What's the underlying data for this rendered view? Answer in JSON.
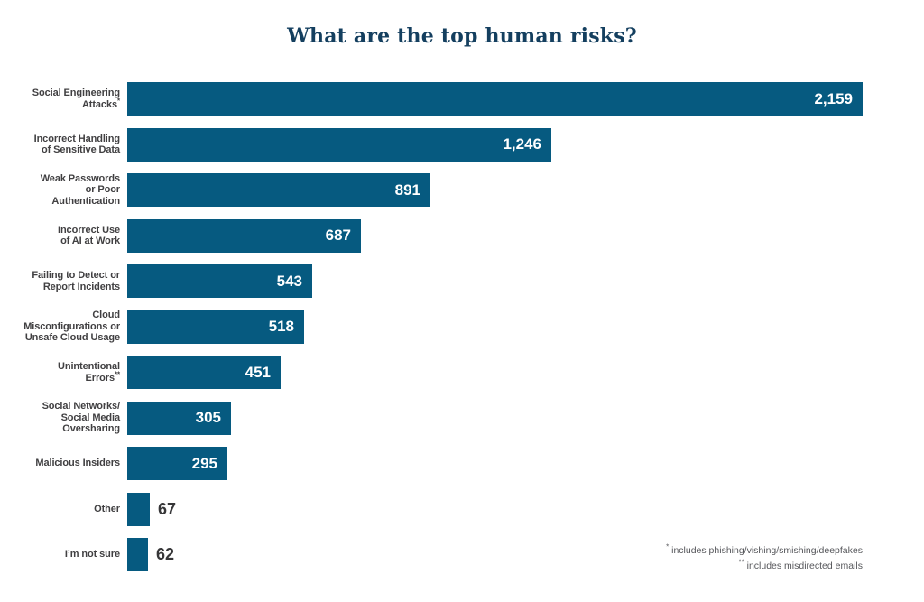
{
  "chart_data": {
    "type": "bar",
    "orientation": "horizontal",
    "title": "What are the top human risks?",
    "xlabel": "",
    "ylabel": "",
    "xlim": [
      0,
      2159
    ],
    "grid": false,
    "legend": null,
    "bar_color": "#065a80",
    "title_color": "#143f5f",
    "label_color": "#414042",
    "value_color_inside": "#ffffff",
    "value_color_outside": "#363638",
    "categories": [
      "Social Engineering Attacks*",
      "Incorrect Handling of Sensitive Data",
      "Weak Passwords or Poor Authentication",
      "Incorrect Use of AI at Work",
      "Failing to Detect or Report Incidents",
      "Cloud Misconfigurations or Unsafe Cloud Usage",
      "Unintentional Errors**",
      "Social Networks/ Social Media Oversharing",
      "Malicious Insiders",
      "Other",
      "I’m not sure"
    ],
    "values": [
      2159,
      1246,
      891,
      687,
      543,
      518,
      451,
      305,
      295,
      67,
      62
    ],
    "rows": [
      {
        "label_lines": [
          "Social Engineering",
          "Attacks"
        ],
        "marker": "*",
        "value": 2159,
        "display": "2,159",
        "value_inside": true
      },
      {
        "label_lines": [
          "Incorrect Handling",
          "of Sensitive Data"
        ],
        "marker": "",
        "value": 1246,
        "display": "1,246",
        "value_inside": true
      },
      {
        "label_lines": [
          "Weak Passwords",
          "or Poor",
          "Authentication"
        ],
        "marker": "",
        "value": 891,
        "display": "891",
        "value_inside": true
      },
      {
        "label_lines": [
          "Incorrect Use",
          "of AI at Work"
        ],
        "marker": "",
        "value": 687,
        "display": "687",
        "value_inside": true
      },
      {
        "label_lines": [
          "Failing to Detect or",
          "Report Incidents"
        ],
        "marker": "",
        "value": 543,
        "display": "543",
        "value_inside": true
      },
      {
        "label_lines": [
          "Cloud",
          "Misconfigurations or",
          "Unsafe Cloud Usage"
        ],
        "marker": "",
        "value": 518,
        "display": "518",
        "value_inside": true
      },
      {
        "label_lines": [
          "Unintentional",
          "Errors"
        ],
        "marker": "**",
        "value": 451,
        "display": "451",
        "value_inside": true
      },
      {
        "label_lines": [
          "Social Networks/",
          "Social Media",
          "Oversharing"
        ],
        "marker": "",
        "value": 305,
        "display": "305",
        "value_inside": true
      },
      {
        "label_lines": [
          "Malicious Insiders"
        ],
        "marker": "",
        "value": 295,
        "display": "295",
        "value_inside": true
      },
      {
        "label_lines": [
          "Other"
        ],
        "marker": "",
        "value": 67,
        "display": "67",
        "value_inside": false
      },
      {
        "label_lines": [
          "I’m not sure"
        ],
        "marker": "",
        "value": 62,
        "display": "62",
        "value_inside": false
      }
    ],
    "footnotes": [
      {
        "marker": "*",
        "text": "includes phishing/vishing/smishing/deepfakes"
      },
      {
        "marker": "**",
        "text": "includes misdirected emails"
      }
    ]
  }
}
